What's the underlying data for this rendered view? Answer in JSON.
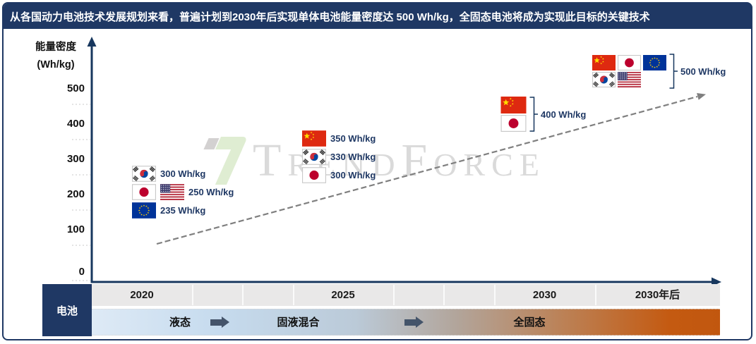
{
  "title": "从各国动力电池技术发展规划来看，普遍计划到2030年后实现单体电池能量密度达 500 Wh/kg，全固态电池将成为实现此目标的关键技术",
  "y_axis": {
    "title_line1": "能量密度",
    "title_line2": "(Wh/kg)",
    "ticks": [
      "500",
      "400",
      "300",
      "200",
      "100",
      "0"
    ]
  },
  "x_axis": {
    "years": [
      "2020",
      "2025",
      "2030",
      "2030年后"
    ]
  },
  "battery_row": {
    "label": "电池",
    "stages": [
      "液态",
      "固液混合",
      "全固态"
    ]
  },
  "watermark": {
    "text": "TrendForce"
  },
  "colors": {
    "navy": "#1F3864",
    "axis": "#17375E",
    "value_text": "#1F3864",
    "trend_arrow": "#7F7F7F",
    "stage_arrow": "#44546A",
    "year_row_bg": "#E9E8E8",
    "stage_gradient_start": "#DEEAF6",
    "stage_gradient_mid": "#B2A59B",
    "stage_gradient_end": "#C45A11"
  },
  "groups": [
    {
      "id": "g2020",
      "type": "list",
      "year": "2020",
      "rows": [
        {
          "flags": [
            "korea"
          ],
          "value": "300 Wh/kg"
        },
        {
          "flags": [
            "japan",
            "usa"
          ],
          "value": "250 Wh/kg"
        },
        {
          "flags": [
            "eu"
          ],
          "value": "235 Wh/kg"
        }
      ]
    },
    {
      "id": "g2025",
      "type": "list",
      "year": "2025",
      "rows": [
        {
          "flags": [
            "china"
          ],
          "value": "350 Wh/kg"
        },
        {
          "flags": [
            "korea"
          ],
          "value": "330 Wh/kg"
        },
        {
          "flags": [
            "japan"
          ],
          "value": "300 Wh/kg"
        }
      ]
    },
    {
      "id": "g2030",
      "type": "bracket",
      "year": "2030",
      "flag_rows": [
        [
          "china"
        ],
        [
          "japan"
        ]
      ],
      "value": "400 Wh/kg"
    },
    {
      "id": "g2030plus",
      "type": "bracket",
      "year": "2030年后",
      "flag_rows": [
        [
          "china",
          "japan",
          "eu"
        ],
        [
          "korea",
          "usa"
        ]
      ],
      "value": "500 Wh/kg"
    }
  ],
  "chart_data": {
    "type": "scatter",
    "title": "从各国动力电池技术发展规划来看，普遍计划到2030年后实现单体电池能量密度达 500 Wh/kg，全固态电池将成为实现此目标的关键技术",
    "ylabel": "能量密度 (Wh/kg)",
    "ylim": [
      0,
      560
    ],
    "yticks": [
      0,
      100,
      200,
      300,
      400,
      500
    ],
    "x_categories": [
      "2020",
      "2025",
      "2030",
      "2030年后"
    ],
    "series": [
      {
        "name": "china",
        "points": [
          {
            "x": "2025",
            "y": 350
          },
          {
            "x": "2030",
            "y": 400
          },
          {
            "x": "2030年后",
            "y": 500
          }
        ]
      },
      {
        "name": "korea",
        "points": [
          {
            "x": "2020",
            "y": 300
          },
          {
            "x": "2025",
            "y": 330
          },
          {
            "x": "2030年后",
            "y": 500
          }
        ]
      },
      {
        "name": "japan",
        "points": [
          {
            "x": "2020",
            "y": 250
          },
          {
            "x": "2025",
            "y": 300
          },
          {
            "x": "2030",
            "y": 400
          },
          {
            "x": "2030年后",
            "y": 500
          }
        ]
      },
      {
        "name": "usa",
        "points": [
          {
            "x": "2020",
            "y": 250
          },
          {
            "x": "2030年后",
            "y": 500
          }
        ]
      },
      {
        "name": "eu",
        "points": [
          {
            "x": "2020",
            "y": 235
          },
          {
            "x": "2030年后",
            "y": 500
          }
        ]
      }
    ],
    "stage_timeline": {
      "label": "电池",
      "stages": [
        "液态",
        "固液混合",
        "全固态"
      ]
    },
    "annotations": [
      "dashed upward trend arrow from ~2020/50Wh-level toward 2030年后/500Wh-level"
    ],
    "legend_position": "none",
    "grid": "minor-dashed-ticks-only"
  }
}
